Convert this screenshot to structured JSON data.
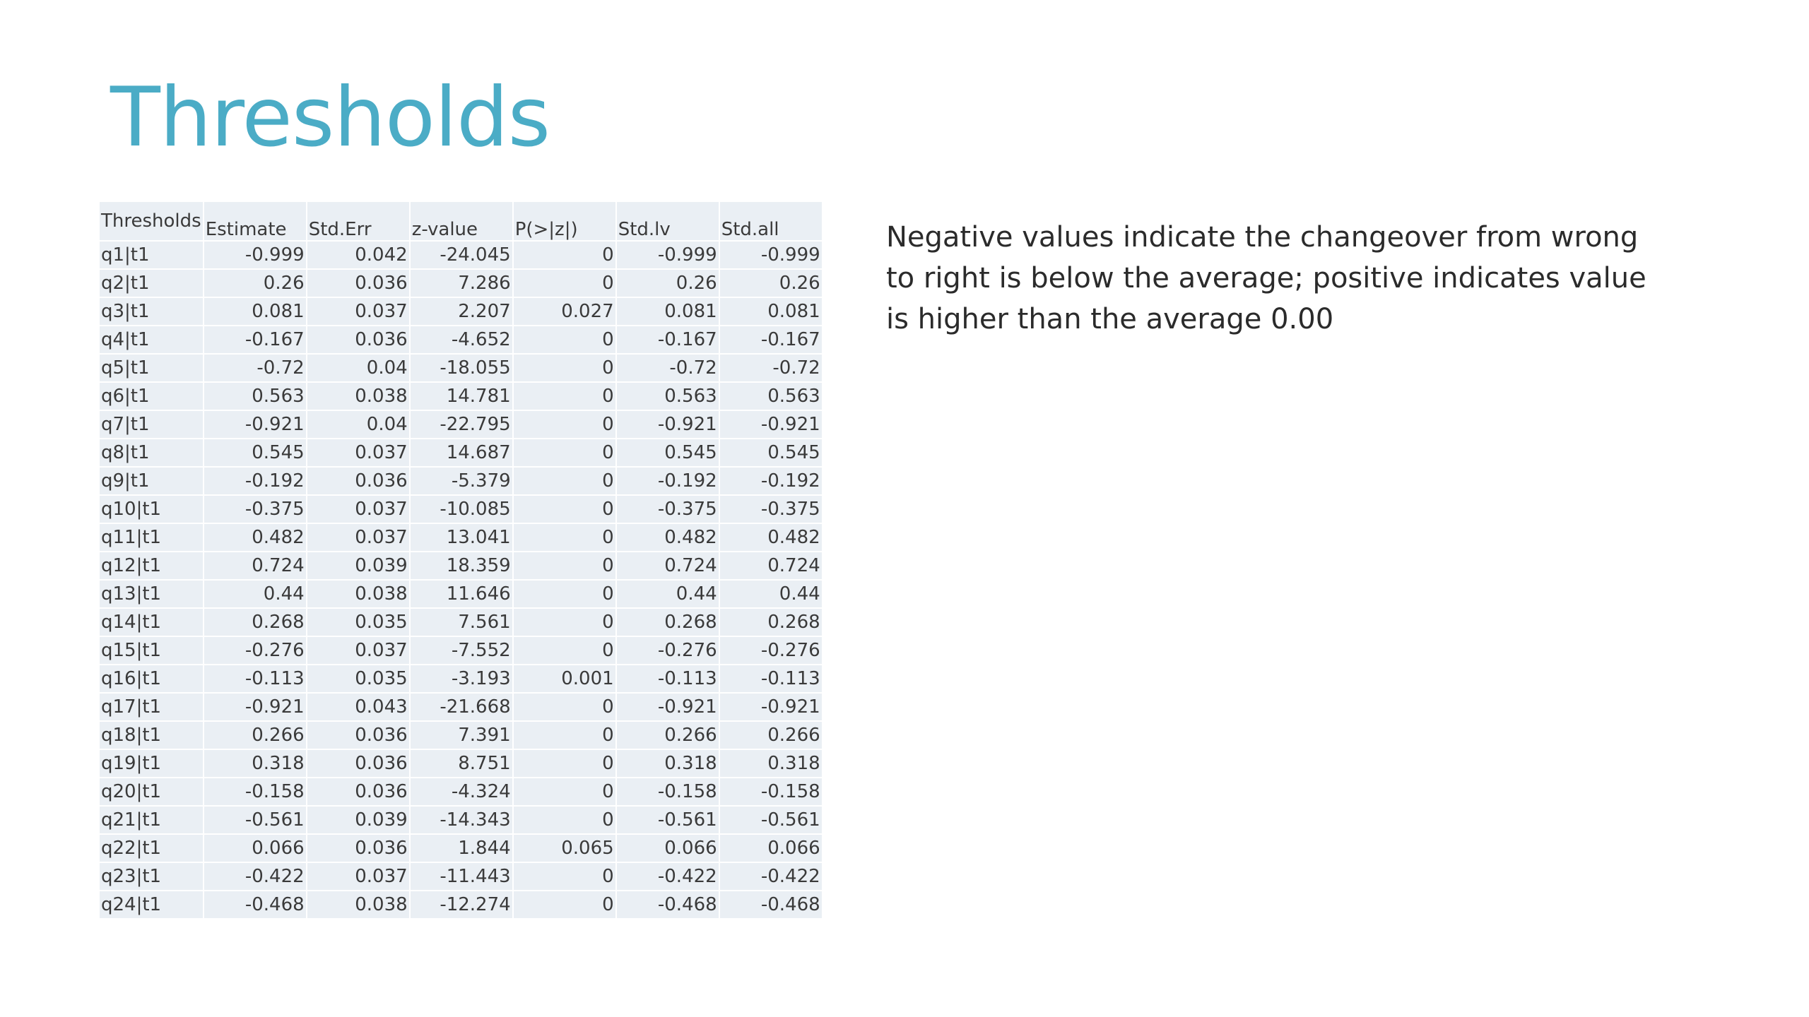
{
  "slide": {
    "title": "Thresholds",
    "note": "Negative values indicate the changeover from wrong to right is below the average; positive indicates value is higher than the average 0.00"
  },
  "table": {
    "headers": [
      "Thresholds",
      "Estimate",
      "Std.Err",
      "z-value",
      "P(>|z|)",
      "Std.lv",
      "Std.all"
    ],
    "rows": [
      [
        "q1|t1",
        "-0.999",
        "0.042",
        "-24.045",
        "0",
        "-0.999",
        "-0.999"
      ],
      [
        "q2|t1",
        "0.26",
        "0.036",
        "7.286",
        "0",
        "0.26",
        "0.26"
      ],
      [
        "q3|t1",
        "0.081",
        "0.037",
        "2.207",
        "0.027",
        "0.081",
        "0.081"
      ],
      [
        "q4|t1",
        "-0.167",
        "0.036",
        "-4.652",
        "0",
        "-0.167",
        "-0.167"
      ],
      [
        "q5|t1",
        "-0.72",
        "0.04",
        "-18.055",
        "0",
        "-0.72",
        "-0.72"
      ],
      [
        "q6|t1",
        "0.563",
        "0.038",
        "14.781",
        "0",
        "0.563",
        "0.563"
      ],
      [
        "q7|t1",
        "-0.921",
        "0.04",
        "-22.795",
        "0",
        "-0.921",
        "-0.921"
      ],
      [
        "q8|t1",
        "0.545",
        "0.037",
        "14.687",
        "0",
        "0.545",
        "0.545"
      ],
      [
        "q9|t1",
        "-0.192",
        "0.036",
        "-5.379",
        "0",
        "-0.192",
        "-0.192"
      ],
      [
        "q10|t1",
        "-0.375",
        "0.037",
        "-10.085",
        "0",
        "-0.375",
        "-0.375"
      ],
      [
        "q11|t1",
        "0.482",
        "0.037",
        "13.041",
        "0",
        "0.482",
        "0.482"
      ],
      [
        "q12|t1",
        "0.724",
        "0.039",
        "18.359",
        "0",
        "0.724",
        "0.724"
      ],
      [
        "q13|t1",
        "0.44",
        "0.038",
        "11.646",
        "0",
        "0.44",
        "0.44"
      ],
      [
        "q14|t1",
        "0.268",
        "0.035",
        "7.561",
        "0",
        "0.268",
        "0.268"
      ],
      [
        "q15|t1",
        "-0.276",
        "0.037",
        "-7.552",
        "0",
        "-0.276",
        "-0.276"
      ],
      [
        "q16|t1",
        "-0.113",
        "0.035",
        "-3.193",
        "0.001",
        "-0.113",
        "-0.113"
      ],
      [
        "q17|t1",
        "-0.921",
        "0.043",
        "-21.668",
        "0",
        "-0.921",
        "-0.921"
      ],
      [
        "q18|t1",
        "0.266",
        "0.036",
        "7.391",
        "0",
        "0.266",
        "0.266"
      ],
      [
        "q19|t1",
        "0.318",
        "0.036",
        "8.751",
        "0",
        "0.318",
        "0.318"
      ],
      [
        "q20|t1",
        "-0.158",
        "0.036",
        "-4.324",
        "0",
        "-0.158",
        "-0.158"
      ],
      [
        "q21|t1",
        "-0.561",
        "0.039",
        "-14.343",
        "0",
        "-0.561",
        "-0.561"
      ],
      [
        "q22|t1",
        "0.066",
        "0.036",
        "1.844",
        "0.065",
        "0.066",
        "0.066"
      ],
      [
        "q23|t1",
        "-0.422",
        "0.037",
        "-11.443",
        "0",
        "-0.422",
        "-0.422"
      ],
      [
        "q24|t1",
        "-0.468",
        "0.038",
        "-12.274",
        "0",
        "-0.468",
        "-0.468"
      ]
    ]
  },
  "colors": {
    "title": "#4bacc6",
    "cell_background": "#eaeff4",
    "text": "#3a3a3a"
  }
}
